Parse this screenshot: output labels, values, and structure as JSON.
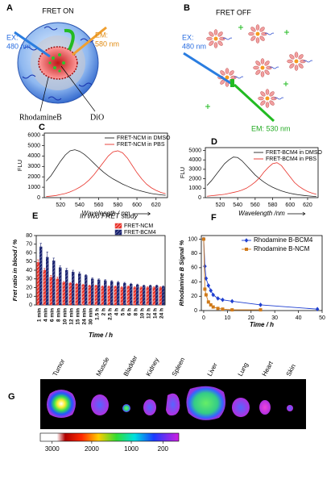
{
  "panel_labels": [
    "A",
    "B",
    "C",
    "D",
    "E",
    "F",
    "G"
  ],
  "diagram_a": {
    "title": "FRET ON",
    "ex": "EX:",
    "ex_wavelength": "480 nm",
    "em": "EM:",
    "em_wavelength": "580 nm",
    "dye_1": "RhodamineB",
    "dye_2": "DiO"
  },
  "diagram_b": {
    "title": "FRET OFF",
    "ex": "EX:",
    "ex_wavelength": "480 nm",
    "em": "EM: 530 nm"
  },
  "chart_data": [
    {
      "type": "line",
      "xlabel": "Wavelength / nm",
      "ylabel": "FLU",
      "x": [
        505,
        510,
        515,
        520,
        525,
        530,
        535,
        540,
        545,
        550,
        555,
        560,
        565,
        570,
        575,
        580,
        585,
        590,
        595,
        600,
        605,
        610,
        615,
        620,
        625,
        630
      ],
      "xlim": [
        503,
        632
      ],
      "xticks": [
        520,
        540,
        560,
        580,
        600,
        620
      ],
      "ylim": [
        0,
        6200
      ],
      "yticks": [
        0,
        1000,
        2000,
        3000,
        4000,
        5000,
        6000
      ],
      "grid": false,
      "legend": "upper right",
      "series": [
        {
          "name": "FRET-NCM in DMSO",
          "color": "#222222",
          "values": [
            1600,
            2100,
            2800,
            3500,
            4100,
            4500,
            4600,
            4450,
            4150,
            3750,
            3300,
            2850,
            2450,
            2100,
            1800,
            1550,
            1300,
            1100,
            900,
            750,
            620,
            500,
            400,
            330,
            270,
            220
          ]
        },
        {
          "name": "FRET-NCM in PBS",
          "color": "#e8322a",
          "values": [
            100,
            150,
            200,
            300,
            400,
            550,
            750,
            1000,
            1300,
            1700,
            2200,
            2800,
            3400,
            4000,
            4400,
            4500,
            4300,
            3800,
            3100,
            2400,
            1800,
            1300,
            950,
            700,
            500,
            380
          ]
        }
      ]
    },
    {
      "type": "line",
      "xlabel": "Wavelength /nm",
      "ylabel": "FLU",
      "x": [
        505,
        510,
        515,
        520,
        525,
        530,
        535,
        540,
        545,
        550,
        555,
        560,
        565,
        570,
        575,
        580,
        585,
        590,
        595,
        600,
        605,
        610,
        615,
        620,
        625,
        630
      ],
      "xlim": [
        503,
        632
      ],
      "xticks": [
        520,
        540,
        560,
        580,
        600,
        620
      ],
      "ylim": [
        0,
        5300
      ],
      "yticks": [
        0,
        1000,
        2000,
        3000,
        4000,
        5000
      ],
      "grid": false,
      "legend": "upper right",
      "series": [
        {
          "name": "FRET-BCM4 in DMSO",
          "color": "#222222",
          "values": [
            1300,
            1800,
            2400,
            3000,
            3600,
            4000,
            4300,
            4250,
            3900,
            3400,
            2900,
            2400,
            2000,
            1650,
            1350,
            1100,
            900,
            720,
            580,
            460,
            370,
            300,
            240,
            190,
            150,
            120
          ]
        },
        {
          "name": "FRET-BCM4 in PBS",
          "color": "#e8322a",
          "values": [
            150,
            200,
            250,
            300,
            350,
            450,
            550,
            650,
            800,
            1000,
            1300,
            1650,
            2100,
            2700,
            3200,
            3600,
            3700,
            3400,
            2800,
            2200,
            1600,
            1200,
            900,
            650,
            480,
            350
          ]
        }
      ]
    },
    {
      "type": "bar",
      "title": "In vivo FRET study",
      "xlabel": "Time / h",
      "ylabel": "Fret ratio in blood / %",
      "categories": [
        "1 min",
        "4 min",
        "6 min",
        "8 min",
        "10 min",
        "12 min",
        "15 min",
        "24 min",
        "30 min",
        "1.5 h",
        "2 h",
        "2.5 h",
        "4 h",
        "5 h",
        "6 h",
        "8 h",
        "10 h",
        "12 h",
        "14 h",
        "24 h"
      ],
      "ylim": [
        0,
        80
      ],
      "yticks": [
        0,
        10,
        20,
        30,
        40,
        50,
        60,
        70,
        80
      ],
      "grid": false,
      "legend": "upper right",
      "series": [
        {
          "name": "FRET-NCM",
          "color": "#e8322a",
          "values": [
            49,
            40,
            32,
            30,
            26,
            25,
            24,
            23,
            22,
            22,
            21,
            21,
            21,
            20,
            21,
            20,
            20,
            20,
            20,
            20
          ],
          "errors": [
            3,
            2,
            2,
            2,
            1,
            1,
            1,
            1,
            1,
            1,
            1,
            1,
            1,
            1,
            1,
            1,
            1,
            1,
            1,
            1
          ]
        },
        {
          "name": "FRET-BCM4",
          "color": "#1a2370",
          "values": [
            67,
            55,
            51,
            43,
            40,
            38,
            36,
            34,
            30,
            29,
            28,
            27,
            26,
            25,
            24,
            23,
            22,
            22,
            22,
            21
          ],
          "errors": [
            4,
            6,
            3,
            2,
            2,
            2,
            2,
            1,
            1,
            1,
            1,
            1,
            1,
            1,
            1,
            1,
            1,
            1,
            1,
            1
          ]
        }
      ]
    },
    {
      "type": "line",
      "xlabel": "Time / h",
      "ylabel": "Rhodamine B Signal %",
      "xlim": [
        -1,
        50
      ],
      "xticks": [
        0,
        10,
        20,
        30,
        40,
        50
      ],
      "ylim": [
        0,
        105
      ],
      "yticks": [
        0,
        20,
        40,
        60,
        80,
        100
      ],
      "grid": false,
      "legend": "upper right",
      "series": [
        {
          "name": "Rhodamine B-BCM4",
          "color": "#1f3fd0",
          "marker": "diamond",
          "x": [
            0,
            0.5,
            1,
            2,
            3,
            4,
            6,
            8,
            12,
            24,
            48
          ],
          "values": [
            100,
            62,
            45,
            35,
            28,
            22,
            17,
            15,
            13,
            8,
            2
          ]
        },
        {
          "name": "Rhodamine B-NCM",
          "color": "#d07a1a",
          "marker": "square",
          "x": [
            0,
            0.5,
            1,
            2,
            3,
            4,
            6,
            8,
            12,
            24
          ],
          "values": [
            100,
            30,
            22,
            12,
            8,
            5,
            3,
            2,
            1,
            1
          ]
        }
      ]
    }
  ],
  "imaging": {
    "organs": [
      "Tumor",
      "Muscle",
      "Bladder",
      "Kidney",
      "Spleen",
      "Liver",
      "Lung",
      "Heart",
      "Skin"
    ],
    "colorbar": {
      "lim": [
        3300,
        -200
      ],
      "ticks": [
        3000,
        2000,
        1000,
        200
      ]
    }
  }
}
